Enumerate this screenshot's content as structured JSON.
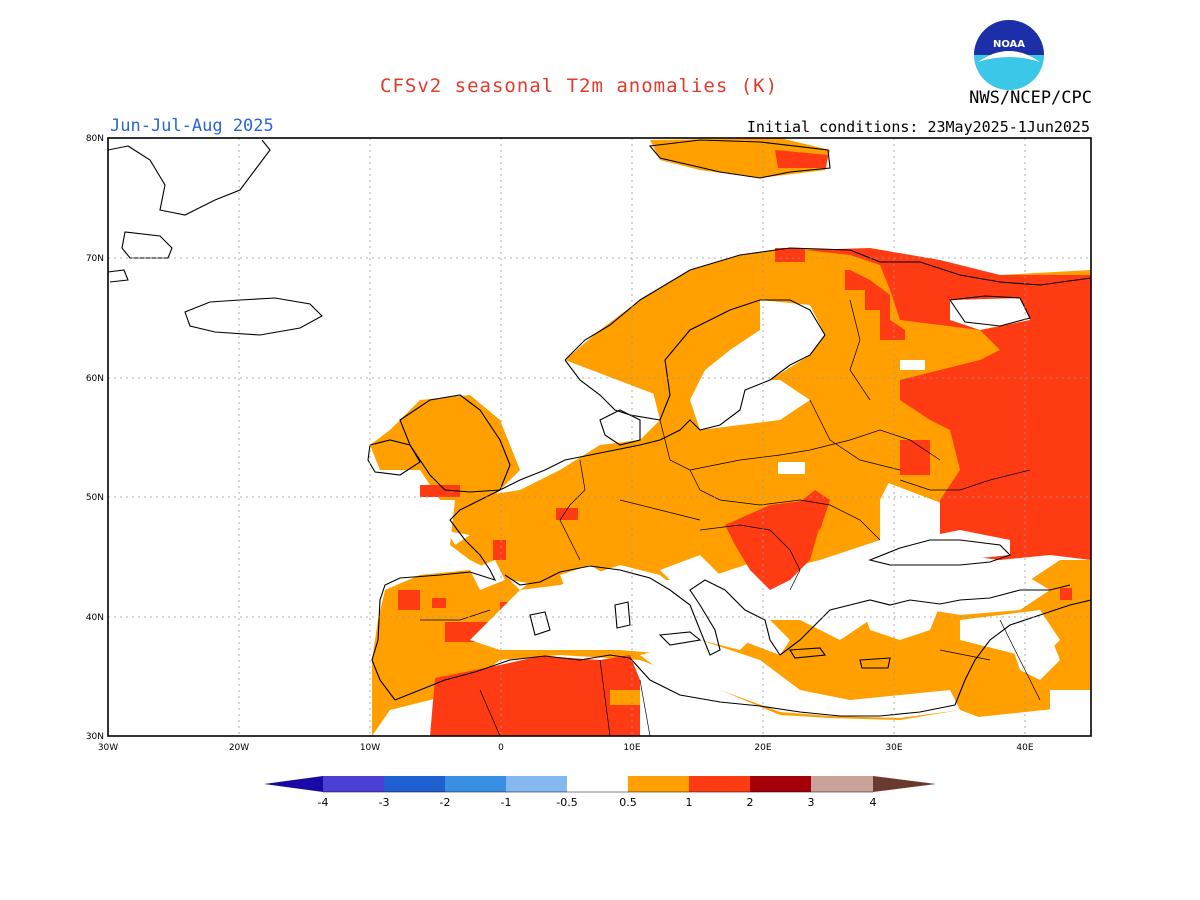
{
  "title": "CFSv2 seasonal T2m anomalies (K)",
  "agency": "NWS/NCEP/CPC",
  "logo_text": "NOAA",
  "season": "Jun-Jul-Aug 2025",
  "initial_conditions": "Initial conditions: 23May2025-1Jun2025",
  "lat_labels": [
    "80N",
    "70N",
    "60N",
    "50N",
    "40N",
    "30N"
  ],
  "lon_labels": [
    "30W",
    "20W",
    "10W",
    "0",
    "10E",
    "20E",
    "30E",
    "40E"
  ],
  "colorbar": {
    "labels": [
      "-4",
      "-3",
      "-2",
      "-1",
      "-0.5",
      "0.5",
      "1",
      "2",
      "3",
      "4"
    ],
    "colors": [
      "#1a0aa5",
      "#4b3fd4",
      "#1f5fd0",
      "#3a8fe3",
      "#86b8f0",
      "#ffffff",
      "#ff9f00",
      "#ff3b14",
      "#a5000a",
      "#c9a29a",
      "#6b3a2f"
    ]
  }
}
